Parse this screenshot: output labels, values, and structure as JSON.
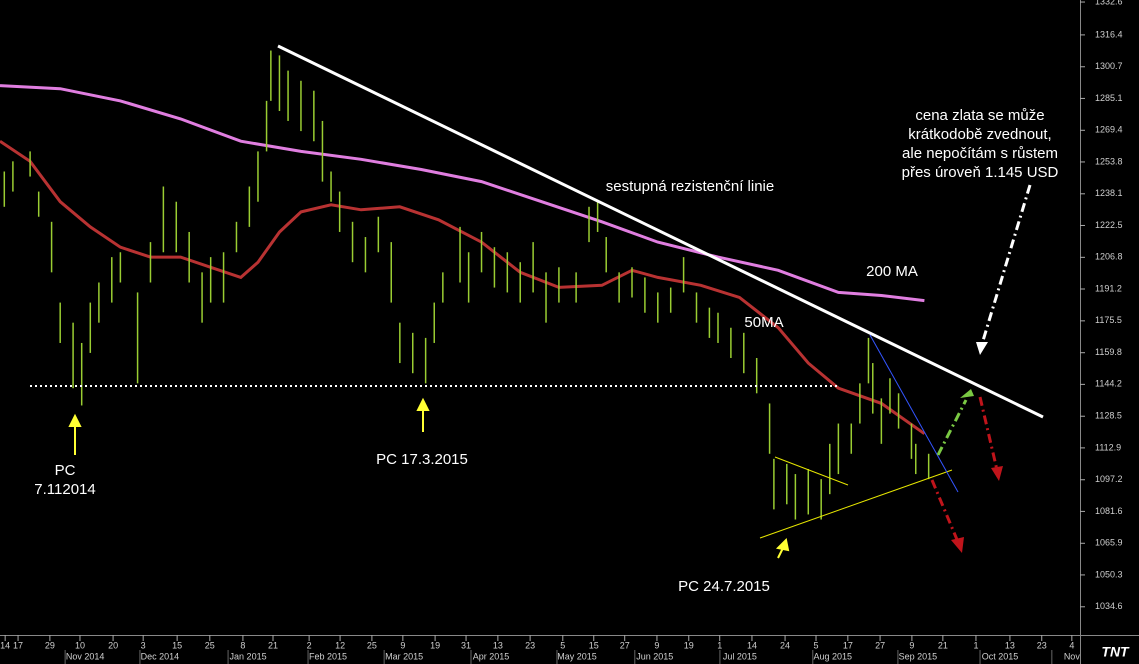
{
  "chart_data": {
    "type": "ohlc",
    "xlim": [
      0,
      251.2
    ],
    "ylim": [
      1020.7,
      1333.6
    ],
    "yticks": [
      1332.6,
      1316.4,
      1300.7,
      1285.1,
      1269.4,
      1253.8,
      1238.1,
      1222.5,
      1206.8,
      1191.2,
      1175.5,
      1159.8,
      1144.2,
      1128.5,
      1112.9,
      1097.2,
      1081.6,
      1065.9,
      1050.3,
      1034.6
    ],
    "xticks": [
      {
        "value": 1.2,
        "label": "14"
      },
      {
        "value": 4.2,
        "label": "17"
      },
      {
        "value": 11.6,
        "label": "29"
      },
      {
        "value": 18.6,
        "label": "10"
      },
      {
        "value": 26.3,
        "label": "20"
      },
      {
        "value": 33.3,
        "label": "3"
      },
      {
        "value": 41.2,
        "label": "15"
      },
      {
        "value": 48.8,
        "label": "25"
      },
      {
        "value": 56.5,
        "label": "8"
      },
      {
        "value": 63.5,
        "label": "21"
      },
      {
        "value": 71.9,
        "label": "2"
      },
      {
        "value": 79.1,
        "label": "12"
      },
      {
        "value": 86.5,
        "label": "25"
      },
      {
        "value": 93.7,
        "label": "9"
      },
      {
        "value": 101.2,
        "label": "19"
      },
      {
        "value": 108.4,
        "label": "31"
      },
      {
        "value": 115.8,
        "label": "13"
      },
      {
        "value": 123.3,
        "label": "23"
      },
      {
        "value": 130.9,
        "label": "5"
      },
      {
        "value": 138.1,
        "label": "15"
      },
      {
        "value": 145.3,
        "label": "27"
      },
      {
        "value": 152.8,
        "label": "9"
      },
      {
        "value": 160.2,
        "label": "19"
      },
      {
        "value": 167.4,
        "label": "1"
      },
      {
        "value": 174.9,
        "label": "14"
      },
      {
        "value": 182.6,
        "label": "24"
      },
      {
        "value": 189.8,
        "label": "5"
      },
      {
        "value": 197.2,
        "label": "17"
      },
      {
        "value": 204.7,
        "label": "27"
      },
      {
        "value": 212.1,
        "label": "9"
      },
      {
        "value": 219.3,
        "label": "21"
      },
      {
        "value": 227.0,
        "label": "1"
      },
      {
        "value": 234.9,
        "label": "13"
      },
      {
        "value": 242.3,
        "label": "23"
      },
      {
        "value": 249.3,
        "label": "4"
      }
    ],
    "month_ticks": [
      {
        "value": 19.8,
        "label": "Nov 2014"
      },
      {
        "value": 37.2,
        "label": "Dec 2014"
      },
      {
        "value": 57.7,
        "label": "Jan 2015"
      },
      {
        "value": 76.3,
        "label": "Feb 2015"
      },
      {
        "value": 94.0,
        "label": "Mar 2015"
      },
      {
        "value": 114.2,
        "label": "Apr 2015"
      },
      {
        "value": 134.2,
        "label": "May 2015"
      },
      {
        "value": 152.3,
        "label": "Jun 2015"
      },
      {
        "value": 172.1,
        "label": "Jul 2015"
      },
      {
        "value": 193.7,
        "label": "Aug 2015"
      },
      {
        "value": 213.5,
        "label": "Sep 2015"
      },
      {
        "value": 232.6,
        "label": "Oct 2015"
      },
      {
        "value": 249.3,
        "label": "Nov"
      }
    ],
    "bars": {
      "color": "#9acd32",
      "x": [
        1,
        3,
        7,
        9,
        12,
        14,
        17,
        19,
        21,
        23,
        26,
        28,
        32,
        35,
        38,
        41,
        44,
        47,
        49,
        52,
        55,
        58,
        60,
        62,
        63,
        65,
        67,
        70,
        73,
        75,
        77,
        79,
        82,
        85,
        88,
        91,
        93,
        96,
        99,
        101,
        103,
        107,
        109,
        112,
        115,
        118,
        121,
        124,
        127,
        130,
        134,
        137,
        139,
        141,
        144,
        147,
        150,
        153,
        156,
        159,
        162,
        165,
        167,
        170,
        173,
        176,
        179,
        180,
        183,
        185,
        188,
        191,
        193,
        195,
        198,
        200,
        202,
        203,
        205,
        207,
        209,
        212,
        213,
        216
      ],
      "high": [
        1249.1,
        1254.1,
        1259.0,
        1239.2,
        1224.3,
        1184.5,
        1174.6,
        1164.6,
        1184.5,
        1194.4,
        1206.9,
        1209.3,
        1189.5,
        1214.3,
        1241.7,
        1234.2,
        1219.3,
        1199.4,
        1206.9,
        1209.3,
        1224.3,
        1241.7,
        1259.0,
        1283.9,
        1308.7,
        1306.3,
        1298.8,
        1293.8,
        1288.9,
        1274.0,
        1249.1,
        1239.2,
        1224.3,
        1216.8,
        1226.8,
        1214.3,
        1174.6,
        1169.6,
        1167.1,
        1184.5,
        1199.4,
        1221.8,
        1209.3,
        1219.3,
        1211.8,
        1209.3,
        1204.4,
        1214.3,
        1199.4,
        1201.9,
        1199.4,
        1231.7,
        1234.2,
        1216.8,
        1199.4,
        1201.9,
        1196.9,
        1189.5,
        1191.9,
        1206.9,
        1189.5,
        1182.0,
        1179.5,
        1172.1,
        1169.6,
        1157.2,
        1134.8,
        1107.5,
        1105.0,
        1100.0,
        1102.5,
        1097.5,
        1114.9,
        1124.9,
        1124.9,
        1144.7,
        1167.1,
        1154.7,
        1137.3,
        1147.2,
        1139.8,
        1124.9,
        1114.9,
        1110.0
      ],
      "low": [
        1231.7,
        1239.2,
        1246.6,
        1226.8,
        1199.4,
        1164.6,
        1142.3,
        1133.8,
        1159.7,
        1174.6,
        1184.5,
        1194.4,
        1144.7,
        1194.4,
        1209.3,
        1209.3,
        1194.4,
        1174.6,
        1184.5,
        1184.5,
        1209.3,
        1221.8,
        1234.2,
        1259.0,
        1283.9,
        1278.9,
        1274.0,
        1269.0,
        1264.0,
        1244.1,
        1234.2,
        1219.3,
        1204.4,
        1199.4,
        1209.3,
        1184.5,
        1154.7,
        1149.7,
        1144.7,
        1164.6,
        1184.5,
        1194.4,
        1184.5,
        1199.4,
        1191.9,
        1189.5,
        1184.5,
        1189.5,
        1174.6,
        1184.5,
        1184.5,
        1214.3,
        1219.3,
        1199.4,
        1184.5,
        1187.0,
        1179.5,
        1174.6,
        1179.5,
        1189.5,
        1174.6,
        1167.1,
        1164.6,
        1157.2,
        1149.7,
        1139.8,
        1110.0,
        1082.6,
        1085.1,
        1077.6,
        1080.1,
        1077.6,
        1090.1,
        1100.0,
        1110.0,
        1124.9,
        1144.7,
        1129.8,
        1114.9,
        1129.8,
        1122.4,
        1107.5,
        1100.0,
        1097.5
      ]
    },
    "series": [
      {
        "name": "200 MA",
        "color": "#e07ee0",
        "x": [
          0,
          14,
          28,
          42,
          56,
          70,
          84,
          98,
          112,
          126,
          140,
          153,
          167,
          181,
          195,
          205,
          215
        ],
        "values": [
          1291.4,
          1289.9,
          1283.9,
          1275.0,
          1264.0,
          1259.0,
          1255.1,
          1250.1,
          1244.1,
          1234.2,
          1224.3,
          1214.3,
          1206.9,
          1200.4,
          1189.5,
          1188.0,
          1185.5
        ]
      },
      {
        "name": "50MA",
        "color": "#b83232",
        "x": [
          0,
          7,
          14,
          21,
          28,
          35,
          42,
          49,
          56,
          60,
          65,
          70,
          77,
          84,
          93,
          102,
          112,
          121,
          130,
          140,
          147,
          153,
          163,
          172,
          181,
          188,
          195,
          205,
          215
        ],
        "values": [
          1264.0,
          1254.1,
          1234.2,
          1221.8,
          1211.8,
          1206.9,
          1206.9,
          1201.9,
          1196.9,
          1204.4,
          1219.3,
          1229.2,
          1232.7,
          1230.2,
          1231.7,
          1225.3,
          1214.3,
          1199.4,
          1192.0,
          1193.0,
          1200.4,
          1196.9,
          1193.0,
          1187.0,
          1172.1,
          1154.7,
          1142.3,
          1134.8,
          1119.9
        ]
      }
    ],
    "annotations": {
      "resistance": "sestupná rezistenční linie",
      "comment": [
        "cena zlata se může",
        "krátkodobě zvednout,",
        "ale nepočítám s růstem",
        "přes úroveň 1.145 USD"
      ],
      "pc1": [
        "PC",
        "7.112014"
      ],
      "pc2": "PC 17.3.2015",
      "pc3": "PC 24.7.2015"
    },
    "logo": "TNT"
  }
}
